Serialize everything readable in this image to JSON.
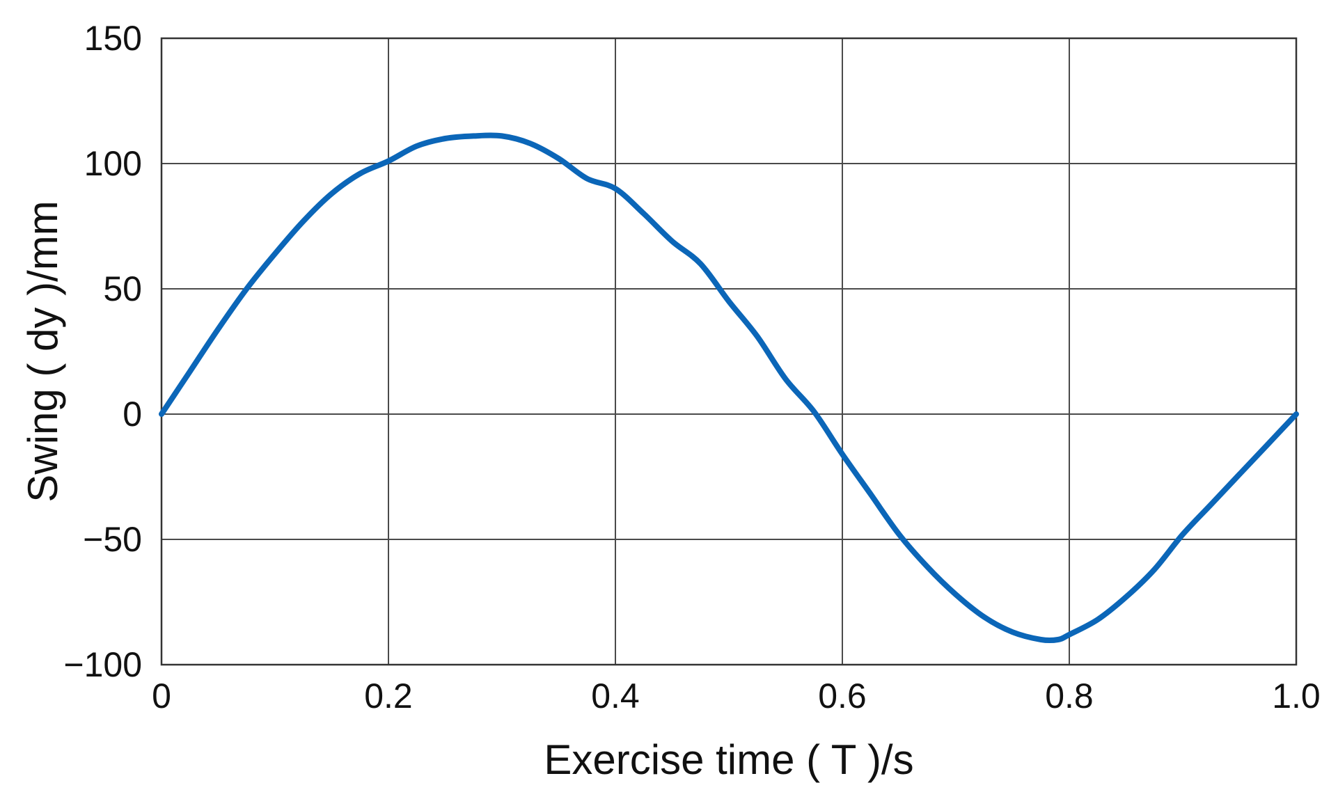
{
  "chart_data": {
    "type": "line",
    "xlabel": "Exercise time ( T )/s",
    "ylabel": "Swing ( dy )/mm",
    "xlim": [
      0,
      1.0
    ],
    "ylim": [
      -100,
      150
    ],
    "xticks": [
      0,
      0.2,
      0.4,
      0.6,
      0.8,
      1.0
    ],
    "xtick_labels": [
      "0",
      "0.2",
      "0.4",
      "0.6",
      "0.8",
      "1.0"
    ],
    "yticks": [
      -100,
      -50,
      0,
      50,
      100,
      150
    ],
    "ytick_labels": [
      "−100",
      "−50",
      "0",
      "50",
      "100",
      "150"
    ],
    "grid": true,
    "series_color": "#0b66b8",
    "series": [
      {
        "x": [
          0,
          0.025,
          0.05,
          0.075,
          0.1,
          0.125,
          0.15,
          0.175,
          0.2,
          0.225,
          0.25,
          0.275,
          0.3,
          0.325,
          0.35,
          0.375,
          0.4,
          0.425,
          0.45,
          0.475,
          0.5,
          0.525,
          0.55,
          0.575,
          0.6,
          0.625,
          0.65,
          0.675,
          0.7,
          0.725,
          0.75,
          0.775,
          0.79,
          0.8,
          0.825,
          0.85,
          0.875,
          0.9,
          0.925,
          0.95,
          0.975,
          1.0
        ],
        "y": [
          0,
          17,
          34,
          50,
          64,
          77,
          88,
          96,
          101,
          107,
          110,
          111,
          111,
          108,
          102,
          94,
          90,
          80,
          69,
          60,
          45,
          31,
          14,
          1,
          -16,
          -32,
          -48,
          -61,
          -72,
          -81,
          -87,
          -90,
          -90,
          -88,
          -82,
          -73,
          -62,
          -48,
          -36,
          -24,
          -12,
          0
        ]
      }
    ]
  }
}
